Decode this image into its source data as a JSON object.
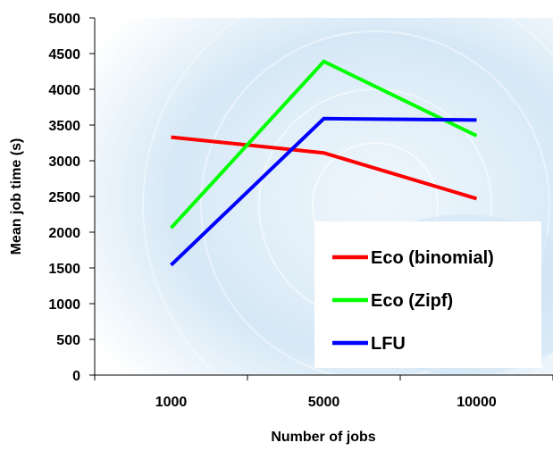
{
  "chart_data": {
    "type": "line",
    "title": "",
    "xlabel": "Number of jobs",
    "ylabel": "Mean job time (s)",
    "categories": [
      "1000",
      "5000",
      "10000"
    ],
    "ylim": [
      0,
      5000
    ],
    "yticks": [
      "0",
      "500",
      "1000",
      "1500",
      "2000",
      "2500",
      "3000",
      "3500",
      "4000",
      "4500",
      "5000"
    ],
    "grid": false,
    "legend_position": "bottom-right",
    "series": [
      {
        "name": "Eco (binomial)",
        "color": "#ff0000",
        "values": [
          3330,
          3110,
          2470
        ]
      },
      {
        "name": "Eco (Zipf)",
        "color": "#00ff00",
        "values": [
          2060,
          4390,
          3350
        ]
      },
      {
        "name": "LFU",
        "color": "#0000ff",
        "values": [
          1540,
          3590,
          3570
        ]
      }
    ]
  }
}
